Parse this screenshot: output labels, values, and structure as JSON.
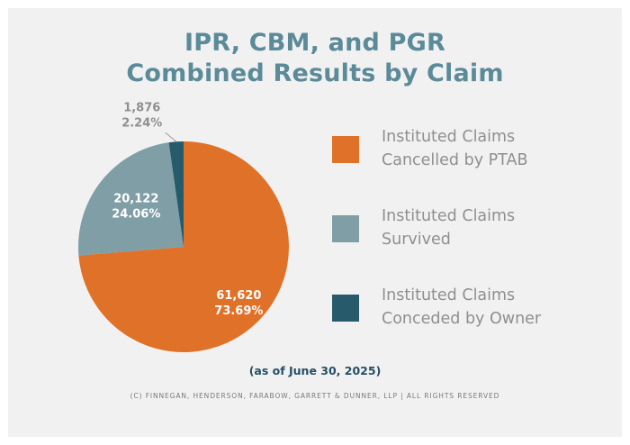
{
  "chart_data": {
    "type": "pie",
    "title": [
      "IPR, CBM, and PGR",
      "Combined Results by Claim"
    ],
    "slices": [
      {
        "name": "Instituted Claims\nCancelled by PTAB",
        "value": 61620,
        "value_label": "61,620",
        "percent_label": "73.69%",
        "color": "#e07128"
      },
      {
        "name": "Instituted Claims\nSurvived",
        "value": 20122,
        "value_label": "20,122",
        "percent_label": "24.06%",
        "color": "#7f9ea6"
      },
      {
        "name": "Instituted Claims\nConceded by Owner",
        "value": 1876,
        "value_label": "1,876",
        "percent_label": "2.24%",
        "color": "#275a6b"
      }
    ],
    "legend_position": "right"
  },
  "footer": {
    "as_of": "(as of June 30, 2025)",
    "copyright": "(C) FINNEGAN, HENDERSON, FARABOW, GARRETT & DUNNER, LLP | ALL RIGHTS RESERVED"
  }
}
